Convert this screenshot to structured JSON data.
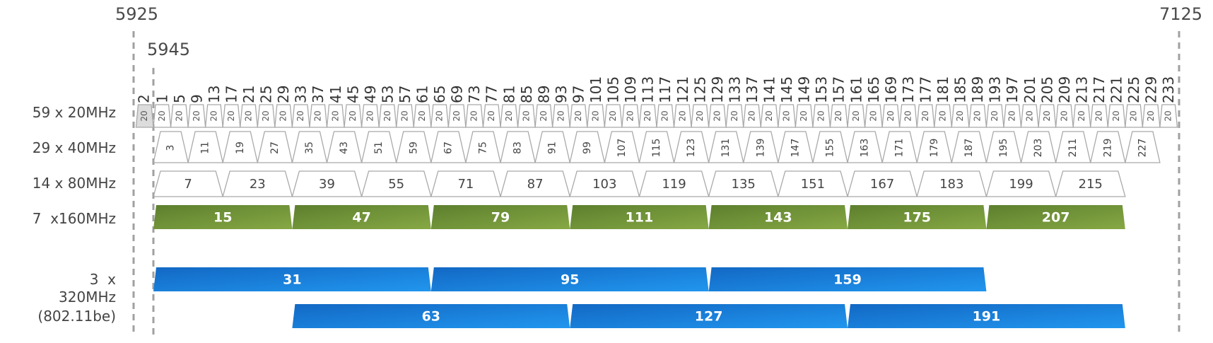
{
  "frequency_markers": {
    "band_start": "5925",
    "band_end": "7125",
    "first_channel": "5945"
  },
  "rows": {
    "w20": "59 x 20MHz",
    "w40": "29 x 40MHz",
    "w80": "14 x 80MHz",
    "w160": "7  x160MHz",
    "w320_line1": "3  x",
    "w320_line2": "320MHz",
    "w320_line3": "(802.11be)"
  },
  "channels_20": {
    "special": "2",
    "block_label": "20",
    "numbers": [
      "1",
      "5",
      "9",
      "13",
      "17",
      "21",
      "25",
      "29",
      "33",
      "37",
      "41",
      "45",
      "49",
      "53",
      "57",
      "61",
      "65",
      "69",
      "73",
      "77",
      "81",
      "85",
      "89",
      "93",
      "97",
      "101",
      "105",
      "109",
      "113",
      "117",
      "121",
      "125",
      "129",
      "133",
      "137",
      "141",
      "145",
      "149",
      "153",
      "157",
      "161",
      "165",
      "169",
      "173",
      "177",
      "181",
      "185",
      "189",
      "193",
      "197",
      "201",
      "205",
      "209",
      "213",
      "217",
      "221",
      "225",
      "229",
      "233"
    ]
  },
  "channels_40": [
    "3",
    "11",
    "19",
    "27",
    "35",
    "43",
    "51",
    "59",
    "67",
    "75",
    "83",
    "91",
    "99",
    "107",
    "115",
    "123",
    "131",
    "139",
    "147",
    "155",
    "163",
    "171",
    "179",
    "187",
    "195",
    "203",
    "211",
    "219",
    "227"
  ],
  "channels_80": [
    "7",
    "23",
    "39",
    "55",
    "71",
    "87",
    "103",
    "119",
    "135",
    "151",
    "167",
    "183",
    "199",
    "215"
  ],
  "channels_160": [
    "15",
    "47",
    "79",
    "111",
    "143",
    "175",
    "207"
  ],
  "channels_320_a": [
    "31",
    "95",
    "159"
  ],
  "channels_320_b": [
    "63",
    "127",
    "191"
  ],
  "colors": {
    "outline": "#a9a9a9",
    "gray_fill": "#dcdcdc",
    "green_dark": "#5d7f2e",
    "green_light": "#86a844",
    "blue_dark": "#1268c4",
    "blue_light": "#2196ee",
    "dashed": "#a0a0a0"
  }
}
